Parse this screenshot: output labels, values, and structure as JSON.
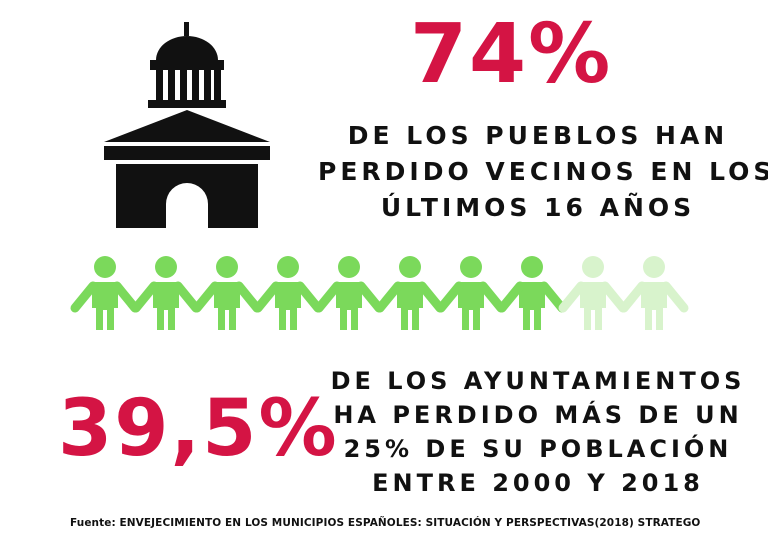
{
  "stat1": {
    "value": "74%",
    "lines": [
      "DE LOS PUEBLOS HAN",
      "PERDIDO VECINOS EN LOS",
      "ÚLTIMOS 16 AÑOS"
    ]
  },
  "stat2": {
    "value": "39,5%",
    "lines": [
      "DE LOS AYUNTAMIENTOS",
      "HA PERDIDO MÁS DE UN",
      "25% DE SU POBLACIÓN",
      "ENTRE 2000 Y 2018"
    ]
  },
  "people": {
    "total": 10,
    "highlighted": 8,
    "highlight_color": "#7bd95b",
    "muted_color": "#d8f3cc"
  },
  "colors": {
    "accent": "#d41444",
    "text": "#111111",
    "building": "#111111"
  },
  "icons": {
    "building": "town-hall-icon",
    "person": "person-icon"
  },
  "source": "Fuente: ENVEJECIMIENTO EN LOS MUNICIPIOS ESPAÑOLES: SITUACIÓN Y PERSPECTIVAS(2018) STRATEGO"
}
